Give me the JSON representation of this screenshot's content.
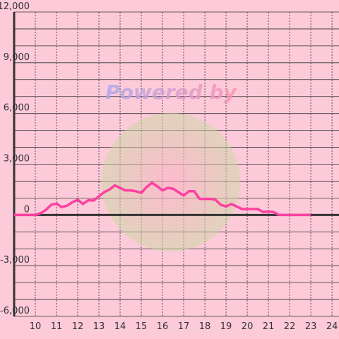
{
  "chart_data": {
    "type": "line",
    "watermark": "Powered by",
    "x": [
      9,
      10,
      10.25,
      10.5,
      10.75,
      11,
      11.25,
      11.5,
      11.75,
      12,
      12.25,
      12.5,
      12.75,
      13,
      13.25,
      13.5,
      13.75,
      14,
      14.25,
      14.5,
      14.75,
      15,
      15.25,
      15.5,
      15.75,
      16,
      16.25,
      16.5,
      16.75,
      17,
      17.25,
      17.5,
      17.75,
      18,
      18.25,
      18.5,
      18.75,
      19,
      19.25,
      19.5,
      19.75,
      20,
      20.25,
      20.5,
      20.75,
      21,
      21.25,
      21.5,
      21.75,
      22,
      22.25,
      22.5,
      22.75,
      23
    ],
    "series": [
      {
        "color": "#ff3fa0",
        "values": [
          0,
          0,
          100,
          300,
          600,
          670,
          460,
          550,
          750,
          900,
          650,
          870,
          850,
          1100,
          1350,
          1500,
          1750,
          1600,
          1450,
          1450,
          1400,
          1300,
          1650,
          1900,
          1700,
          1450,
          1600,
          1550,
          1350,
          1150,
          1400,
          1400,
          950,
          950,
          950,
          900,
          600,
          500,
          650,
          500,
          350,
          350,
          350,
          350,
          170,
          200,
          170,
          0,
          0,
          0,
          0,
          0,
          0,
          0
        ]
      }
    ],
    "xlim": [
      9,
      24.33
    ],
    "xticks": [
      10,
      11,
      12,
      13,
      14,
      15,
      16,
      17,
      18,
      19,
      20,
      21,
      22,
      23,
      24
    ],
    "ylim": [
      -6000,
      12000
    ],
    "yticks": [
      {
        "value": 12000,
        "label": "12,000"
      },
      {
        "value": 9000,
        "label": "9,000"
      },
      {
        "value": 6000,
        "label": "6,000"
      },
      {
        "value": 3000,
        "label": "3,000"
      },
      0,
      {
        "value": -3000,
        "label": "-3,000"
      },
      {
        "value": -6000,
        "label": "-6,000"
      }
    ],
    "y_minor_ticks": [
      11000,
      10000,
      8000,
      7000,
      5000,
      4000,
      2000,
      1000,
      -1000,
      -2000,
      -4000,
      -5000
    ],
    "grid": true
  }
}
